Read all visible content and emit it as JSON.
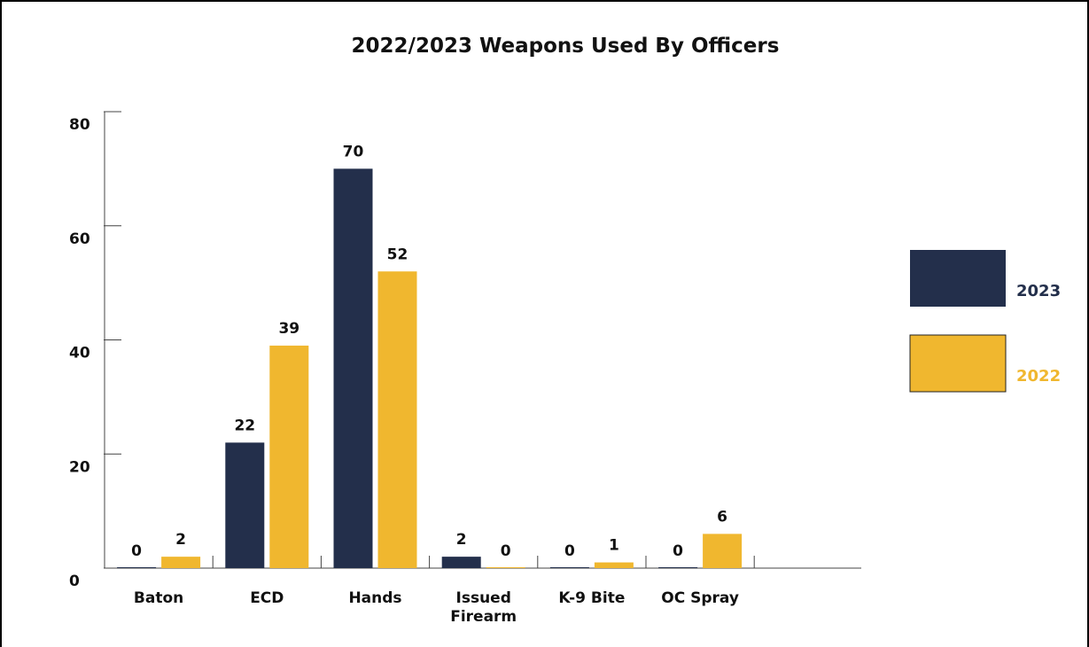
{
  "chart_data": {
    "type": "bar",
    "title": "2022/2023 Weapons Used By Officers",
    "xlabel": "",
    "ylabel": "",
    "categories": [
      [
        "Baton"
      ],
      [
        "ECD"
      ],
      [
        "Hands"
      ],
      [
        "Issued",
        "Firearm"
      ],
      [
        "K-9 Bite"
      ],
      [
        "OC Spray"
      ]
    ],
    "series": [
      {
        "name": "2023",
        "values": [
          0,
          22,
          70,
          2,
          0,
          0
        ],
        "labels": [
          "0",
          "22",
          "70",
          "2",
          "0",
          "0"
        ],
        "color": "#232f4b"
      },
      {
        "name": "2022",
        "values": [
          2,
          39,
          52,
          0,
          1,
          6
        ],
        "labels": [
          "2",
          "39",
          "52",
          "0",
          "1",
          "6"
        ],
        "color": "#f0b72f"
      }
    ],
    "ylim": [
      0,
      80
    ],
    "yticks": [
      "0",
      "20",
      "40",
      "60",
      "80"
    ],
    "grid": false,
    "legend": "right"
  }
}
